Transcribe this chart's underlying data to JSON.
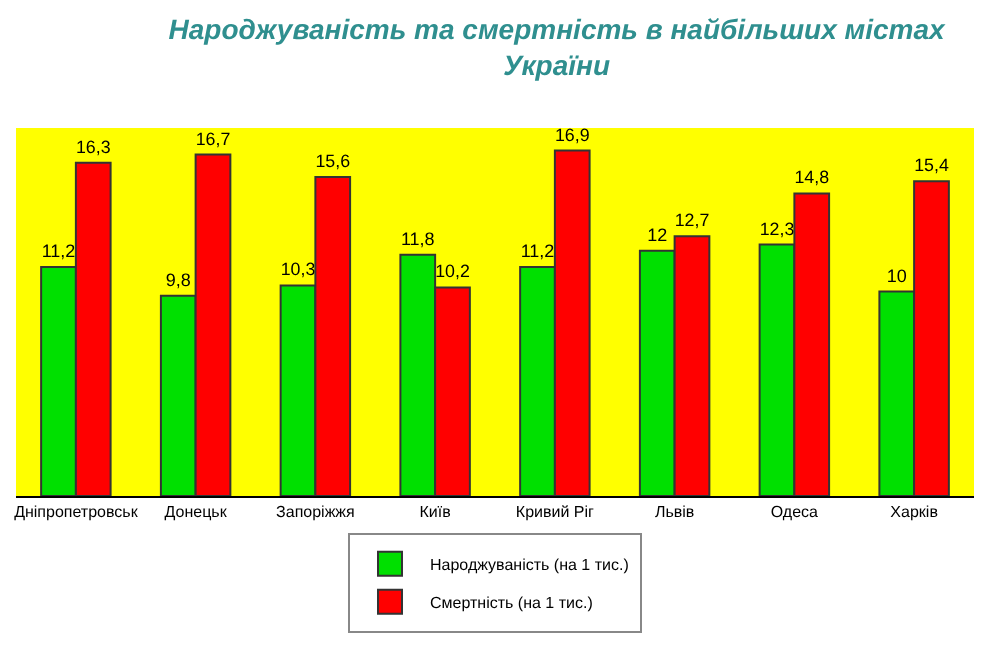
{
  "chart_data": {
    "type": "bar",
    "title": "Народжуваність та смертність в найбільших містах України",
    "categories": [
      "Дніпропетровськ",
      "Донецьк",
      "Запоріжжя",
      "Київ",
      "Кривий Ріг",
      "Львів",
      "Одеса",
      "Харків"
    ],
    "series": [
      {
        "name": "Народжуваність (на 1 тис.)",
        "color": "#00e000",
        "values": [
          11.2,
          9.8,
          10.3,
          11.8,
          11.2,
          12,
          12.3,
          10
        ],
        "value_labels": [
          "11,2",
          "9,8",
          "10,3",
          "11,8",
          "11,2",
          "12",
          "12,3",
          "10"
        ]
      },
      {
        "name": "Смертність (на 1 тис.)",
        "color": "#ff0000",
        "values": [
          16.3,
          16.7,
          15.6,
          10.2,
          16.9,
          12.7,
          14.8,
          15.4
        ],
        "value_labels": [
          "16,3",
          "16,7",
          "15,6",
          "10,2",
          "16,9",
          "12,7",
          "14,8",
          "15,4"
        ]
      }
    ],
    "ylim": [
      0,
      18
    ],
    "tick_labels": "x",
    "grid": false,
    "legend": "bottom"
  }
}
